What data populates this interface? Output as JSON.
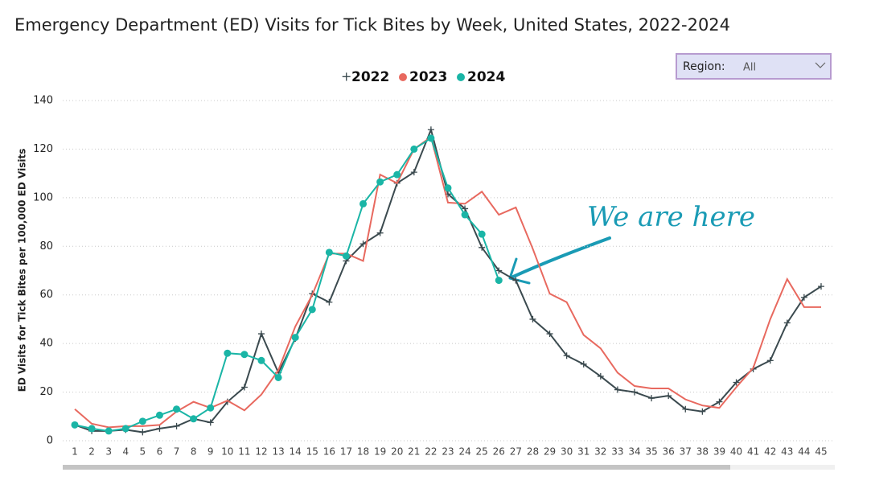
{
  "chart_data": {
    "type": "line",
    "title": "Emergency Department (ED) Visits for Tick Bites by Week, United States, 2022-2024",
    "ylabel": "ED Visits for Tick Bites per 100,000 ED Visits",
    "categories": [
      1,
      2,
      3,
      4,
      5,
      6,
      7,
      8,
      9,
      10,
      11,
      12,
      13,
      14,
      15,
      16,
      17,
      18,
      19,
      20,
      21,
      22,
      23,
      24,
      25,
      26,
      27,
      28,
      29,
      30,
      31,
      32,
      33,
      34,
      35,
      36,
      37,
      38,
      39,
      40,
      41,
      42,
      43,
      44,
      45
    ],
    "series": [
      {
        "name": "2022",
        "color": "#3b4a4f",
        "marker": "plus",
        "values": [
          6.5,
          4,
          4,
          4.5,
          3.5,
          5,
          6,
          9,
          7.5,
          16,
          22,
          44,
          28,
          42,
          60.5,
          57,
          74,
          81,
          85.5,
          106,
          110.5,
          128,
          101.5,
          95.5,
          79.5,
          70,
          66,
          50,
          44,
          35,
          31.5,
          26.5,
          21,
          20,
          17.5,
          18.5,
          13,
          12,
          16,
          24,
          29.5,
          33,
          48.5,
          59,
          63.5
        ]
      },
      {
        "name": "2023",
        "color": "#e8695f",
        "marker": "none",
        "values": [
          13,
          7,
          5.5,
          6,
          6,
          6.5,
          12,
          16,
          13.5,
          16.5,
          12.5,
          19,
          29,
          47,
          60,
          77,
          77,
          74,
          109.5,
          106,
          120,
          125,
          98,
          97.5,
          102.5,
          93,
          96,
          79,
          60.5,
          57,
          43.5,
          38,
          28,
          22.5,
          21.5,
          21.5,
          17,
          14.5,
          13.5,
          22,
          30,
          50,
          66.5,
          55,
          55
        ]
      },
      {
        "name": "2024",
        "color": "#1ab5a6",
        "marker": "circle",
        "values": [
          6.5,
          5,
          4,
          5,
          8,
          10.5,
          13,
          9,
          13.5,
          36,
          35.5,
          33,
          26,
          42.5,
          54,
          77.5,
          76,
          97.5,
          106.5,
          109.5,
          120,
          124.5,
          104,
          93,
          85,
          66,
          null,
          null,
          null,
          null,
          null,
          null,
          null,
          null,
          null,
          null,
          null,
          null,
          null,
          null,
          null,
          null,
          null,
          null,
          null
        ]
      }
    ],
    "ylim": [
      0,
      140
    ],
    "yticks": [
      0,
      20,
      40,
      60,
      80,
      100,
      120,
      140
    ],
    "grid": true,
    "legend": "top",
    "annotation": "We are here",
    "slicer": {
      "label": "Region:",
      "value": "All"
    }
  }
}
